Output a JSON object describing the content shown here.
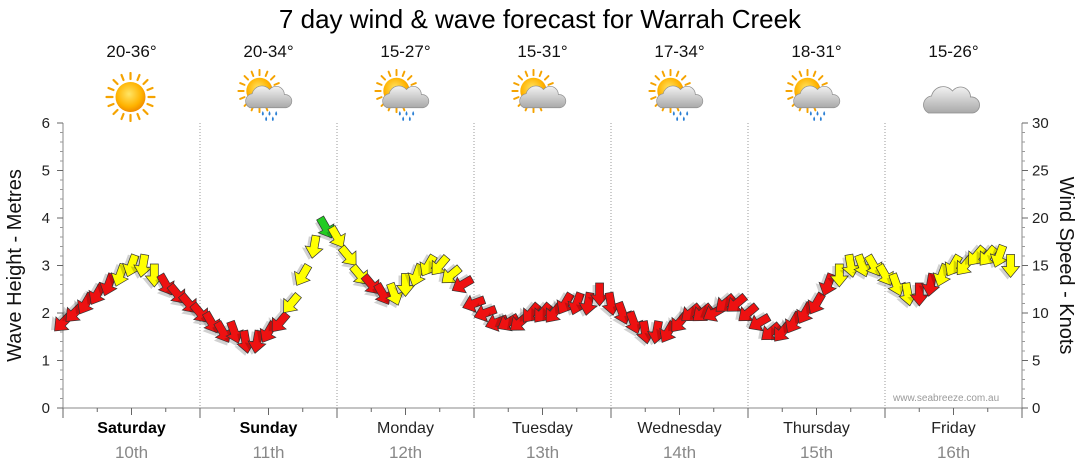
{
  "chart_data": {
    "type": "line",
    "title": "7 day wind & wave forecast for Warrah Creek",
    "ylabel": "Wave Height - Metres",
    "y2label": "Wind Speed - Knots",
    "ylim": [
      0,
      6
    ],
    "y2lim": [
      0,
      30
    ],
    "yticks": [
      "0",
      "1",
      "2",
      "3",
      "4",
      "5",
      "6"
    ],
    "y2ticks": [
      "0",
      "5",
      "10",
      "15",
      "20",
      "25",
      "30"
    ],
    "days": [
      {
        "name": "Saturday",
        "date": "10th",
        "temp": "20-36°",
        "icon": "sun-icon",
        "bold": true
      },
      {
        "name": "Sunday",
        "date": "11th",
        "temp": "20-34°",
        "icon": "sun-cloud-rain-icon",
        "bold": true
      },
      {
        "name": "Monday",
        "date": "12th",
        "temp": "15-27°",
        "icon": "sun-cloud-rain-icon",
        "bold": false
      },
      {
        "name": "Tuesday",
        "date": "13th",
        "temp": "15-31°",
        "icon": "sun-cloud-icon",
        "bold": false
      },
      {
        "name": "Wednesday",
        "date": "14th",
        "temp": "17-34°",
        "icon": "sun-cloud-rain-icon",
        "bold": false
      },
      {
        "name": "Thursday",
        "date": "15th",
        "temp": "18-31°",
        "icon": "sun-cloud-rain-icon",
        "bold": false
      },
      {
        "name": "Friday",
        "date": "16th",
        "temp": "15-26°",
        "icon": "cloud-icon",
        "bold": false
      }
    ],
    "hours": [
      0,
      2,
      4,
      6,
      8,
      10,
      12,
      14,
      16,
      18,
      20,
      22,
      24,
      26,
      28,
      30,
      32,
      34,
      36,
      38,
      40,
      42,
      44,
      46,
      48,
      50,
      52,
      54,
      56,
      58,
      60,
      62,
      64,
      66,
      68,
      70,
      72,
      74,
      76,
      78,
      80,
      82,
      84,
      86,
      88,
      90,
      92,
      94,
      96,
      98,
      100,
      102,
      104,
      106,
      108,
      110,
      112,
      114,
      116,
      118,
      120,
      122,
      124,
      126,
      128,
      130,
      132,
      134,
      136,
      138,
      140,
      142,
      144,
      146,
      148,
      150,
      152,
      154,
      156,
      158,
      160,
      162,
      164,
      166
    ],
    "wind_knots": [
      9,
      10,
      11,
      12,
      13,
      14,
      15,
      15,
      14,
      13,
      12,
      11,
      10,
      9,
      8,
      8,
      7,
      7,
      8,
      9,
      11,
      14,
      17,
      19,
      18,
      16,
      14,
      13,
      12,
      12,
      13,
      14,
      15,
      15,
      14,
      13,
      11,
      10,
      9,
      9,
      9,
      10,
      10,
      10,
      11,
      11,
      11,
      12,
      11,
      10,
      9,
      8,
      8,
      8,
      9,
      10,
      10,
      10,
      11,
      11,
      10,
      9,
      8,
      8,
      9,
      10,
      11,
      13,
      14,
      15,
      15,
      15,
      14,
      13,
      12,
      12,
      13,
      14,
      15,
      15,
      16,
      16,
      16,
      15
    ],
    "wind_levels": [
      "red",
      "red",
      "red",
      "red",
      "red",
      "yellow",
      "yellow",
      "yellow",
      "yellow",
      "red",
      "red",
      "red",
      "red",
      "red",
      "red",
      "red",
      "red",
      "red",
      "red",
      "red",
      "yellow",
      "yellow",
      "yellow",
      "green",
      "yellow",
      "yellow",
      "yellow",
      "red",
      "red",
      "yellow",
      "yellow",
      "yellow",
      "yellow",
      "yellow",
      "yellow",
      "red",
      "red",
      "red",
      "red",
      "red",
      "red",
      "red",
      "red",
      "red",
      "red",
      "red",
      "red",
      "red",
      "red",
      "red",
      "red",
      "red",
      "red",
      "red",
      "red",
      "red",
      "red",
      "red",
      "red",
      "red",
      "red",
      "red",
      "red",
      "red",
      "red",
      "red",
      "red",
      "red",
      "yellow",
      "yellow",
      "yellow",
      "yellow",
      "yellow",
      "yellow",
      "yellow",
      "red",
      "red",
      "yellow",
      "yellow",
      "yellow",
      "yellow",
      "yellow",
      "yellow",
      "yellow"
    ],
    "wind_dir_deg": [
      225,
      225,
      210,
      210,
      200,
      200,
      200,
      190,
      180,
      150,
      140,
      140,
      140,
      150,
      150,
      160,
      170,
      190,
      210,
      220,
      220,
      210,
      190,
      150,
      150,
      140,
      140,
      140,
      150,
      160,
      180,
      200,
      210,
      220,
      230,
      240,
      250,
      250,
      250,
      240,
      230,
      220,
      220,
      220,
      210,
      200,
      190,
      180,
      170,
      160,
      160,
      170,
      190,
      210,
      220,
      230,
      230,
      240,
      230,
      230,
      230,
      240,
      230,
      220,
      210,
      210,
      210,
      200,
      180,
      170,
      160,
      150,
      150,
      160,
      170,
      180,
      190,
      200,
      210,
      220,
      220,
      220,
      200,
      180
    ]
  },
  "watermark": "www.seabreeze.com.au",
  "colors": {
    "red": "#ee1111",
    "yellow": "#ffff00",
    "green": "#22cc22",
    "outline": "#333333"
  }
}
